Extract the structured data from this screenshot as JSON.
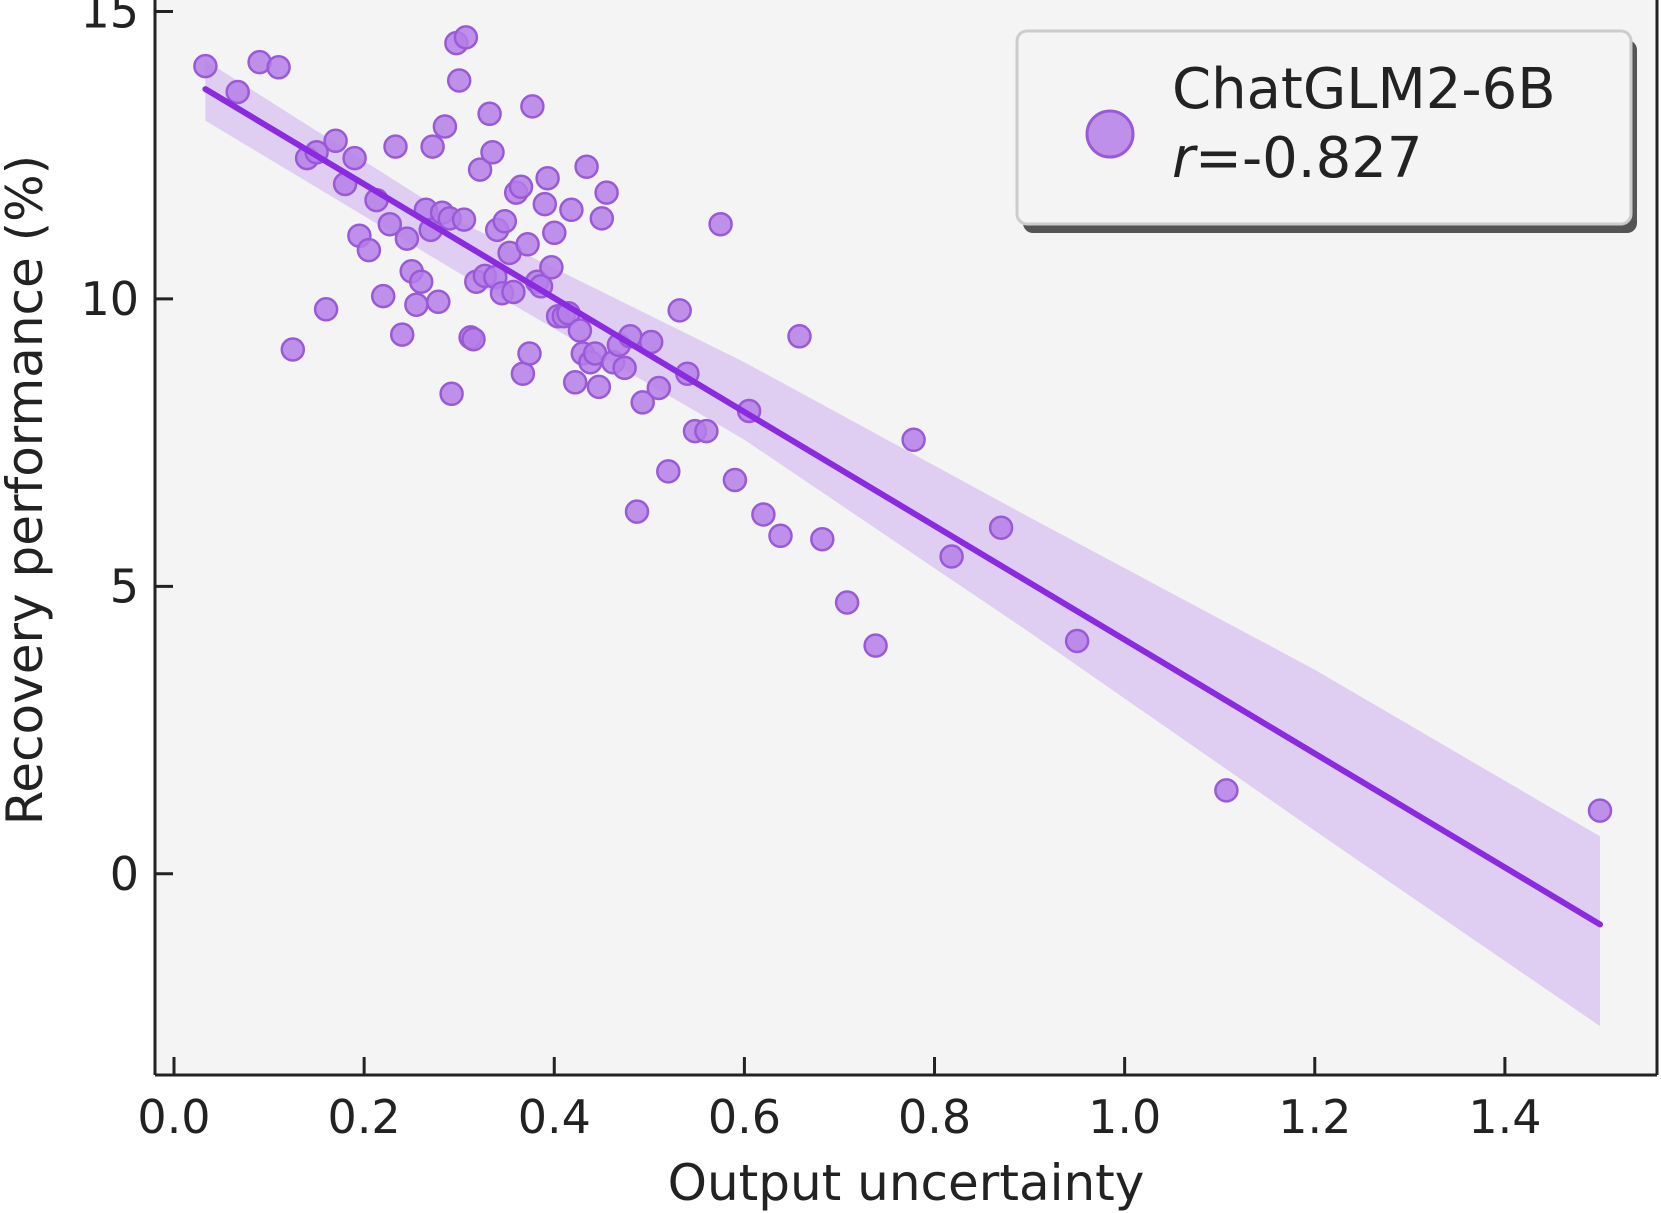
{
  "chart_data": {
    "type": "scatter",
    "title": "",
    "xlabel": "Output uncertainty",
    "ylabel": "Recovery performance (%)",
    "xlim": [
      -0.02,
      1.56
    ],
    "ylim": [
      -3.5,
      15.2
    ],
    "xticks": [
      0.0,
      0.2,
      0.4,
      0.6,
      0.8,
      1.0,
      1.2,
      1.4
    ],
    "xtick_labels": [
      "0.0",
      "0.2",
      "0.4",
      "0.6",
      "0.8",
      "1.0",
      "1.2",
      "1.4"
    ],
    "yticks": [
      0,
      5,
      10,
      15
    ],
    "ytick_labels": [
      "0",
      "5",
      "10",
      "15"
    ],
    "grid": false,
    "legend": {
      "placement": "top-right",
      "series_name": "ChatGLM2-6B",
      "r_symbol": "r",
      "r_value": "=-0.827"
    },
    "colors": {
      "point_fill": "#b57ee8",
      "point_edge": "#9a5ad8",
      "line": "#8a2be2",
      "band": "#dcc6f1",
      "background": "#f4f4f4"
    },
    "regression": {
      "x": [
        0.033,
        1.5
      ],
      "y": [
        13.65,
        -0.88
      ],
      "ci_x": [
        0.033,
        0.3,
        0.6,
        0.9,
        1.2,
        1.5
      ],
      "ci_upper": [
        14.15,
        11.35,
        8.9,
        6.2,
        3.55,
        0.65
      ],
      "ci_lower": [
        13.1,
        10.45,
        7.55,
        4.2,
        0.75,
        -2.65
      ]
    },
    "series": [
      {
        "name": "ChatGLM2-6B",
        "points": [
          [
            0.033,
            14.05
          ],
          [
            0.067,
            13.6
          ],
          [
            0.09,
            14.12
          ],
          [
            0.11,
            14.03
          ],
          [
            0.125,
            9.12
          ],
          [
            0.14,
            12.45
          ],
          [
            0.15,
            12.55
          ],
          [
            0.16,
            9.82
          ],
          [
            0.17,
            12.75
          ],
          [
            0.18,
            12.0
          ],
          [
            0.19,
            12.45
          ],
          [
            0.195,
            11.1
          ],
          [
            0.205,
            10.85
          ],
          [
            0.213,
            11.72
          ],
          [
            0.22,
            10.05
          ],
          [
            0.227,
            11.3
          ],
          [
            0.233,
            12.65
          ],
          [
            0.24,
            9.38
          ],
          [
            0.245,
            11.05
          ],
          [
            0.25,
            10.48
          ],
          [
            0.255,
            9.9
          ],
          [
            0.26,
            10.3
          ],
          [
            0.265,
            11.55
          ],
          [
            0.27,
            11.2
          ],
          [
            0.272,
            12.65
          ],
          [
            0.278,
            9.95
          ],
          [
            0.282,
            11.5
          ],
          [
            0.285,
            13.0
          ],
          [
            0.29,
            11.4
          ],
          [
            0.292,
            8.35
          ],
          [
            0.297,
            14.45
          ],
          [
            0.3,
            13.8
          ],
          [
            0.305,
            11.38
          ],
          [
            0.307,
            14.55
          ],
          [
            0.312,
            9.33
          ],
          [
            0.315,
            9.3
          ],
          [
            0.318,
            10.3
          ],
          [
            0.322,
            12.25
          ],
          [
            0.327,
            10.4
          ],
          [
            0.332,
            13.22
          ],
          [
            0.335,
            12.55
          ],
          [
            0.338,
            10.38
          ],
          [
            0.34,
            11.2
          ],
          [
            0.345,
            10.1
          ],
          [
            0.348,
            11.35
          ],
          [
            0.353,
            10.8
          ],
          [
            0.357,
            10.12
          ],
          [
            0.36,
            11.85
          ],
          [
            0.365,
            11.95
          ],
          [
            0.367,
            8.7
          ],
          [
            0.372,
            10.95
          ],
          [
            0.374,
            9.05
          ],
          [
            0.377,
            13.35
          ],
          [
            0.382,
            10.3
          ],
          [
            0.386,
            10.22
          ],
          [
            0.39,
            11.65
          ],
          [
            0.393,
            12.1
          ],
          [
            0.397,
            10.55
          ],
          [
            0.4,
            11.15
          ],
          [
            0.404,
            9.7
          ],
          [
            0.41,
            9.7
          ],
          [
            0.415,
            9.75
          ],
          [
            0.418,
            11.55
          ],
          [
            0.422,
            8.55
          ],
          [
            0.427,
            9.45
          ],
          [
            0.43,
            9.05
          ],
          [
            0.434,
            12.3
          ],
          [
            0.438,
            8.9
          ],
          [
            0.443,
            9.05
          ],
          [
            0.447,
            8.47
          ],
          [
            0.45,
            11.4
          ],
          [
            0.455,
            11.85
          ],
          [
            0.462,
            8.9
          ],
          [
            0.468,
            9.2
          ],
          [
            0.474,
            8.8
          ],
          [
            0.48,
            9.35
          ],
          [
            0.487,
            6.3
          ],
          [
            0.493,
            8.2
          ],
          [
            0.502,
            9.25
          ],
          [
            0.51,
            8.45
          ],
          [
            0.52,
            7.0
          ],
          [
            0.532,
            9.8
          ],
          [
            0.54,
            8.7
          ],
          [
            0.548,
            7.7
          ],
          [
            0.56,
            7.7
          ],
          [
            0.575,
            11.3
          ],
          [
            0.59,
            6.85
          ],
          [
            0.605,
            8.05
          ],
          [
            0.62,
            6.25
          ],
          [
            0.638,
            5.88
          ],
          [
            0.658,
            9.35
          ],
          [
            0.682,
            5.82
          ],
          [
            0.708,
            4.72
          ],
          [
            0.738,
            3.97
          ],
          [
            0.778,
            7.55
          ],
          [
            0.818,
            5.52
          ],
          [
            0.87,
            6.02
          ],
          [
            0.95,
            4.05
          ],
          [
            1.107,
            1.45
          ],
          [
            1.5,
            1.1
          ]
        ]
      }
    ]
  }
}
